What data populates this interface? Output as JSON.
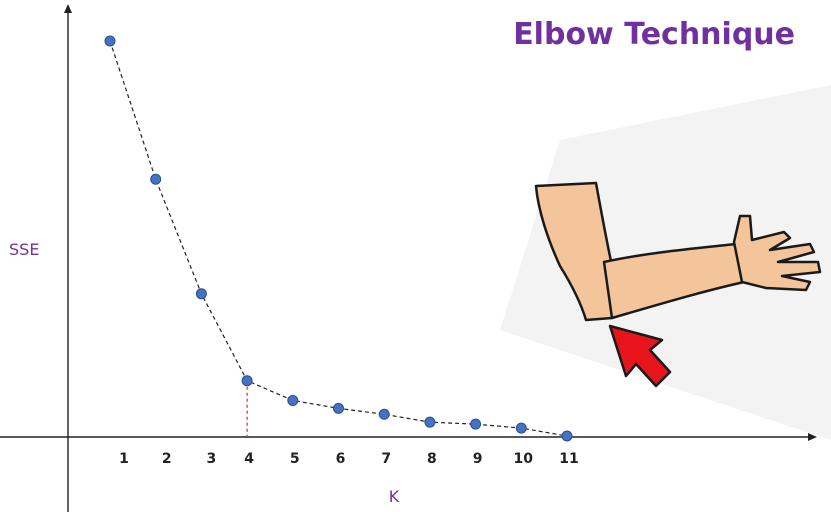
{
  "chart_data": {
    "type": "line",
    "title": "Elbow Technique",
    "xlabel": "K",
    "ylabel": "SSE",
    "x": [
      1,
      2,
      3,
      4,
      5,
      6,
      7,
      8,
      9,
      10,
      11
    ],
    "y": [
      100,
      65,
      36,
      14,
      9,
      7,
      5.5,
      3.5,
      3,
      2,
      0
    ],
    "ylim": [
      0,
      100
    ],
    "elbow_k": 4,
    "grid": false,
    "colors": {
      "point": "#4472c4",
      "point_stroke": "#2e4f8a",
      "line": "#222222",
      "elbow_marker": "#e02020",
      "text": "#7030a0",
      "axis": "#222222"
    }
  }
}
